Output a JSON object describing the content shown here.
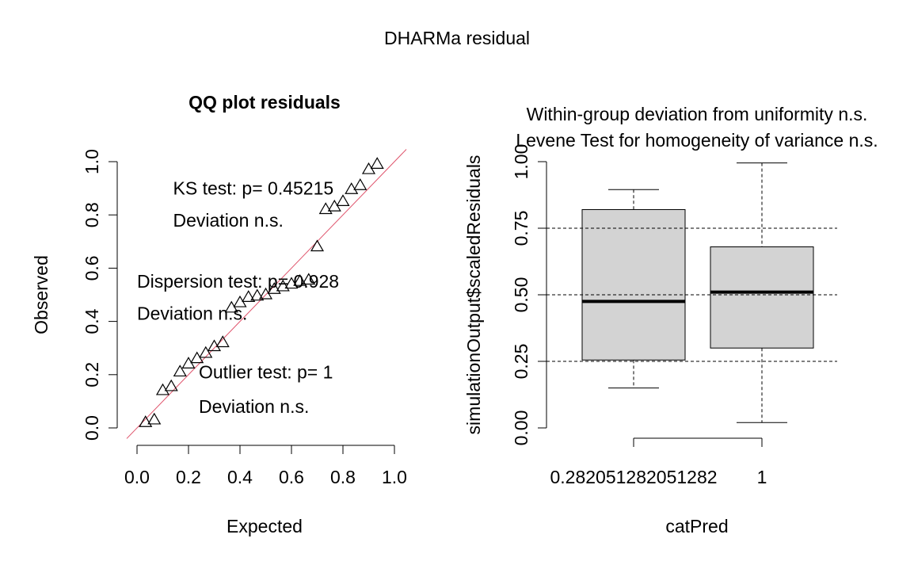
{
  "figure_title": "DHARMa residual",
  "colors": {
    "reference_line": "#df536b",
    "box_fill": "#d3d3d3",
    "grid": "#000000"
  },
  "chart_data": [
    {
      "type": "scatter",
      "title": "QQ plot residuals",
      "xlabel": "Expected",
      "ylabel": "Observed",
      "xlim": [
        0,
        1
      ],
      "ylim": [
        0,
        1
      ],
      "x_ticks": [
        "0.0",
        "0.2",
        "0.4",
        "0.6",
        "0.8",
        "1.0"
      ],
      "y_ticks": [
        "0.0",
        "0.2",
        "0.4",
        "0.6",
        "0.8",
        "1.0"
      ],
      "marker": "open-triangle",
      "reference_line": "y = x",
      "points": [
        {
          "x": 0.033,
          "y": 0.02
        },
        {
          "x": 0.067,
          "y": 0.03
        },
        {
          "x": 0.1,
          "y": 0.14
        },
        {
          "x": 0.133,
          "y": 0.155
        },
        {
          "x": 0.167,
          "y": 0.21
        },
        {
          "x": 0.2,
          "y": 0.24
        },
        {
          "x": 0.233,
          "y": 0.26
        },
        {
          "x": 0.267,
          "y": 0.28
        },
        {
          "x": 0.3,
          "y": 0.305
        },
        {
          "x": 0.333,
          "y": 0.32
        },
        {
          "x": 0.367,
          "y": 0.45
        },
        {
          "x": 0.4,
          "y": 0.47
        },
        {
          "x": 0.433,
          "y": 0.49
        },
        {
          "x": 0.467,
          "y": 0.495
        },
        {
          "x": 0.5,
          "y": 0.5
        },
        {
          "x": 0.533,
          "y": 0.52
        },
        {
          "x": 0.567,
          "y": 0.53
        },
        {
          "x": 0.6,
          "y": 0.54
        },
        {
          "x": 0.633,
          "y": 0.55
        },
        {
          "x": 0.667,
          "y": 0.555
        },
        {
          "x": 0.7,
          "y": 0.68
        },
        {
          "x": 0.733,
          "y": 0.82
        },
        {
          "x": 0.767,
          "y": 0.83
        },
        {
          "x": 0.8,
          "y": 0.85
        },
        {
          "x": 0.833,
          "y": 0.895
        },
        {
          "x": 0.867,
          "y": 0.91
        },
        {
          "x": 0.9,
          "y": 0.97
        },
        {
          "x": 0.933,
          "y": 0.99
        }
      ],
      "annotations": [
        {
          "text": "KS test: p= 0.45215",
          "at": [
            0.14,
            0.9
          ]
        },
        {
          "text": "Deviation  n.s.",
          "at": [
            0.14,
            0.78
          ]
        },
        {
          "text": "Dispersion test: p= 0.928",
          "at": [
            0.0,
            0.55
          ]
        },
        {
          "text": "Deviation  n.s.",
          "at": [
            0.0,
            0.43
          ]
        },
        {
          "text": "Outlier test: p= 1",
          "at": [
            0.24,
            0.21
          ]
        },
        {
          "text": "Deviation  n.s.",
          "at": [
            0.24,
            0.08
          ]
        }
      ]
    },
    {
      "type": "box",
      "title_lines": [
        "Within-group deviation from uniformity n.s.",
        "Levene Test for homogeneity of variance n.s."
      ],
      "xlabel": "catPred",
      "ylabel": "simulationOutput$scaledResiduals",
      "ylim": [
        0,
        1
      ],
      "y_ticks": [
        "0.00",
        "0.25",
        "0.50",
        "0.75",
        "1.00"
      ],
      "categories": [
        "0.282051282051282",
        "1"
      ],
      "boxes": [
        {
          "category": "0.282051282051282",
          "min": 0.15,
          "q1": 0.255,
          "median": 0.475,
          "q3": 0.82,
          "max": 0.895
        },
        {
          "category": "1",
          "min": 0.02,
          "q1": 0.3,
          "median": 0.51,
          "q3": 0.68,
          "max": 0.995
        }
      ],
      "reference_lines": [
        0.25,
        0.5,
        0.75
      ]
    }
  ]
}
